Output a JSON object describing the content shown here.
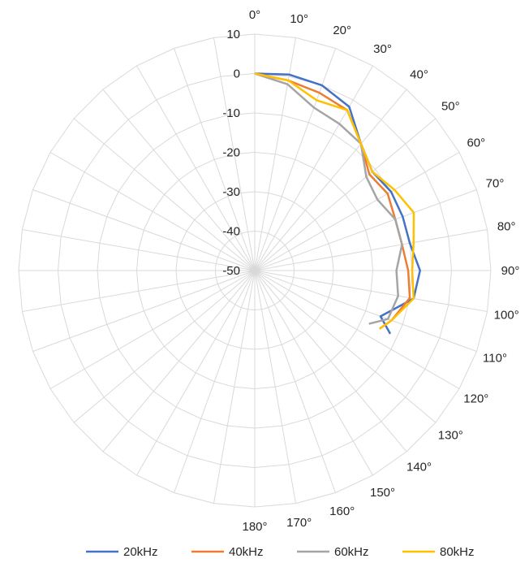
{
  "chart_data": {
    "type": "radar",
    "r_axis": {
      "min": -50,
      "max": 10,
      "ticks": [
        10,
        0,
        -10,
        -20,
        -30,
        -40,
        -50
      ]
    },
    "angle_labels": [
      "0°",
      "10°",
      "20°",
      "30°",
      "40°",
      "50°",
      "60°",
      "70°",
      "80°",
      "90°",
      "100°",
      "110°",
      "120°",
      "130°",
      "140°",
      "150°",
      "160°",
      "170°",
      "180°"
    ],
    "angles": [
      0,
      10,
      20,
      30,
      40,
      50,
      60,
      70,
      80,
      90,
      100,
      110,
      120,
      130,
      140,
      150,
      160,
      170,
      180
    ],
    "grid": true,
    "legend_position": "bottom",
    "series": [
      {
        "name": "20kHz",
        "color": "#4472c4",
        "theta": [
          0,
          10,
          20,
          30,
          40,
          50,
          60,
          70,
          80,
          90,
          100,
          110,
          115
        ],
        "r": [
          0,
          0.5,
          0,
          -2,
          -8,
          -11,
          -10,
          -10,
          -10,
          -8,
          -9,
          -16,
          -12
        ]
      },
      {
        "name": "40kHz",
        "color": "#ed7d31",
        "theta": [
          0,
          10,
          20,
          30,
          40,
          50,
          60,
          70,
          80,
          90,
          100,
          110,
          115
        ],
        "r": [
          0,
          -1,
          -2,
          -3,
          -8,
          -12,
          -11,
          -12,
          -12,
          -11,
          -10,
          -13,
          -15
        ]
      },
      {
        "name": "60kHz",
        "color": "#a5a5a5",
        "theta": [
          0,
          10,
          20,
          30,
          40,
          50,
          60,
          70,
          80,
          90,
          100,
          110,
          115
        ],
        "r": [
          0,
          -2,
          -6,
          -7,
          -8,
          -13,
          -14,
          -12,
          -12,
          -14,
          -13,
          -14,
          -18
        ]
      },
      {
        "name": "80kHz",
        "color": "#ffc000",
        "theta": [
          0,
          10,
          20,
          30,
          40,
          50,
          60,
          70,
          80,
          90,
          100,
          110,
          115
        ],
        "r": [
          0,
          -1,
          -4,
          -3,
          -8,
          -11,
          -9,
          -7,
          -9,
          -10,
          -9,
          -13,
          -15
        ]
      }
    ]
  }
}
